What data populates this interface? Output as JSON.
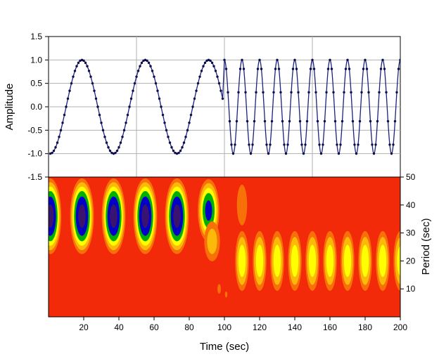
{
  "chart_data": [
    {
      "type": "line",
      "title": "",
      "xlabel": "",
      "ylabel": "Amplitude",
      "xlim": [
        0,
        200
      ],
      "ylim": [
        -1.5,
        1.5
      ],
      "yticks": [
        "1.5",
        "1.0",
        "0.5",
        "0.0",
        "-0.5",
        "-1.0",
        "-1.5"
      ],
      "ytick_values": [
        1.5,
        1.0,
        0.5,
        0.0,
        -0.5,
        -1.0,
        -1.5
      ],
      "grid": true,
      "marker": "dot",
      "line_color": "#1a237e",
      "series": [
        {
          "segments": [
            {
              "x_start": 1,
              "x_end": 99,
              "period_sec": 36,
              "form": "-cos(2*pi*(t-1)/36)"
            },
            {
              "x_start": 100,
              "x_end": 200,
              "period_sec": 10,
              "form": "cos(2*pi*(t-100)/10)"
            }
          ]
        }
      ]
    },
    {
      "type": "heatmap",
      "title": "",
      "xlabel": "Time (sec)",
      "ylabel": "Period (sec)",
      "xlim": [
        0,
        200
      ],
      "ylim": [
        0,
        50
      ],
      "xticks": [
        "20",
        "40",
        "60",
        "80",
        "100",
        "120",
        "140",
        "160",
        "180",
        "200"
      ],
      "xtick_values": [
        20,
        40,
        60,
        80,
        100,
        120,
        140,
        160,
        180,
        200
      ],
      "yticks": [
        "50",
        "40",
        "30",
        "20",
        "10"
      ],
      "ytick_values": [
        50,
        40,
        30,
        20,
        10
      ],
      "colormap": [
        "#f22a0a",
        "#f77008",
        "#fcb90a",
        "#ffff00",
        "#00b000",
        "#0000c8",
        "#3a1370"
      ],
      "background_color": "#f22a0a",
      "blobs_description_units": "center time (sec), center period (sec), half-width time, half-height period, peak level 0-1",
      "blobs": [
        [
          1,
          36,
          6,
          13,
          1.0
        ],
        [
          19,
          36,
          6.5,
          13,
          1.0
        ],
        [
          37,
          36,
          6.5,
          13,
          1.0
        ],
        [
          55,
          36,
          6.5,
          13,
          1.0
        ],
        [
          73,
          36,
          6.5,
          13,
          1.0
        ],
        [
          91,
          38,
          6,
          11,
          0.85
        ],
        [
          93,
          27,
          5,
          8,
          0.45
        ],
        [
          110,
          40,
          4,
          10,
          0.3
        ],
        [
          97,
          10,
          2,
          3.5,
          0.22
        ],
        [
          101,
          8,
          2,
          3,
          0.2
        ],
        [
          110,
          20,
          4,
          11,
          0.63
        ],
        [
          120,
          20,
          4,
          11,
          0.63
        ],
        [
          130,
          20,
          4,
          11,
          0.63
        ],
        [
          140,
          20,
          4,
          11,
          0.63
        ],
        [
          150,
          20,
          4,
          11,
          0.63
        ],
        [
          160,
          20,
          4,
          11,
          0.63
        ],
        [
          170,
          20,
          4,
          11,
          0.63
        ],
        [
          180,
          20,
          4,
          11,
          0.63
        ],
        [
          190,
          20,
          4,
          11,
          0.63
        ],
        [
          200,
          20,
          4,
          11,
          0.6
        ]
      ]
    }
  ]
}
